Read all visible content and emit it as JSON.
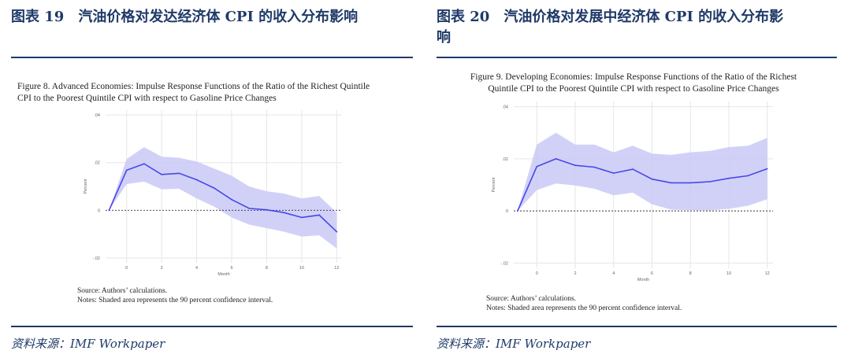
{
  "colors": {
    "header": "#1f3a68",
    "line": "#4848e8",
    "band": "#c9c9f7"
  },
  "left": {
    "header_num": "图表 19",
    "header_text": "汽油价格对发达经济体 CPI 的收入分布影响",
    "figure_title_1": "Figure 8. Advanced Economies: Impulse Response Functions of the Ratio of the Richest Quintile",
    "figure_title_2": "CPI to the Poorest Quintile CPI with respect to Gasoline Price Changes",
    "source_note": "Source: Authors’ calculations.",
    "notes": "Notes: Shaded area represents the 90 percent confidence interval.",
    "source": "资料来源：IMF Workpaper"
  },
  "right": {
    "header_num": "图表 20",
    "header_text": "汽油价格对发展中经济体 CPI 的收入分布影",
    "header_text_2": "响",
    "figure_title_1": "Figure 9. Developing Economies: Impulse Response Functions of the Ratio of the Richest",
    "figure_title_2": "Quintile CPI to the Poorest Quintile CPI with respect to Gasoline Price Changes",
    "source_note": "Source: Authors’ calculations.",
    "notes": "Notes: Shaded area represents the 90 percent confidence interval.",
    "source": "资料来源：IMF Workpaper"
  },
  "chart_data": [
    {
      "type": "line",
      "title": "Figure 8. Advanced Economies: Impulse Response Functions of the Ratio of the Richest Quintile CPI to the Poorest Quintile CPI with respect to Gasoline Price Changes",
      "xlabel": "Month",
      "ylabel": "Percent",
      "x": [
        -1,
        0,
        1,
        2,
        3,
        4,
        5,
        6,
        7,
        8,
        9,
        10,
        11,
        12
      ],
      "xticks": [
        0,
        2,
        4,
        6,
        8,
        10,
        12
      ],
      "yticks": [
        -0.02,
        0,
        0.02,
        0.04
      ],
      "ytick_labels": [
        "-.02",
        "0",
        ".02",
        ".04"
      ],
      "xlim": [
        -1.2,
        12.3
      ],
      "ylim": [
        -0.022,
        0.042
      ],
      "grid": true,
      "zero_line": "dotted",
      "series": [
        {
          "values": [
            0,
            0.0168,
            0.0195,
            0.015,
            0.0155,
            0.0128,
            0.0093,
            0.0045,
            0.0008,
            0.0002,
            -0.001,
            -0.003,
            -0.002,
            -0.009
          ]
        }
      ],
      "band_upper": [
        0,
        0.0215,
        0.0265,
        0.0225,
        0.022,
        0.0205,
        0.0175,
        0.0145,
        0.01,
        0.008,
        0.007,
        0.005,
        0.006,
        -0.001
      ],
      "band_lower": [
        0,
        0.011,
        0.012,
        0.0088,
        0.009,
        0.005,
        0.0015,
        -0.003,
        -0.006,
        -0.0075,
        -0.009,
        -0.011,
        -0.0105,
        -0.016
      ]
    },
    {
      "type": "line",
      "title": "Figure 9. Developing Economies: Impulse Response Functions of the Ratio of the Richest Quintile CPI to the Poorest Quintile CPI with respect to Gasoline Price Changes",
      "xlabel": "Month",
      "ylabel": "Percent",
      "x": [
        -1,
        0,
        1,
        2,
        3,
        4,
        5,
        6,
        7,
        8,
        9,
        10,
        11,
        12
      ],
      "xticks": [
        0,
        2,
        4,
        6,
        8,
        10,
        12
      ],
      "yticks": [
        -0.02,
        0,
        0.02,
        0.04
      ],
      "ytick_labels": [
        "-.02",
        "0",
        ".02",
        ".04"
      ],
      "xlim": [
        -1.2,
        12.3
      ],
      "ylim": [
        -0.022,
        0.042
      ],
      "grid": true,
      "zero_line": "dotted",
      "series": [
        {
          "values": [
            0,
            0.017,
            0.02,
            0.0175,
            0.0168,
            0.0145,
            0.016,
            0.0122,
            0.0108,
            0.0108,
            0.0112,
            0.0125,
            0.0135,
            0.0162
          ]
        }
      ],
      "band_upper": [
        0,
        0.0255,
        0.03,
        0.0255,
        0.0255,
        0.0225,
        0.025,
        0.022,
        0.0215,
        0.0225,
        0.023,
        0.0245,
        0.025,
        0.028
      ],
      "band_lower": [
        0,
        0.008,
        0.0105,
        0.0098,
        0.0085,
        0.006,
        0.007,
        0.0025,
        0.0005,
        0.0003,
        0.0002,
        0.0008,
        0.002,
        0.0045
      ]
    }
  ]
}
